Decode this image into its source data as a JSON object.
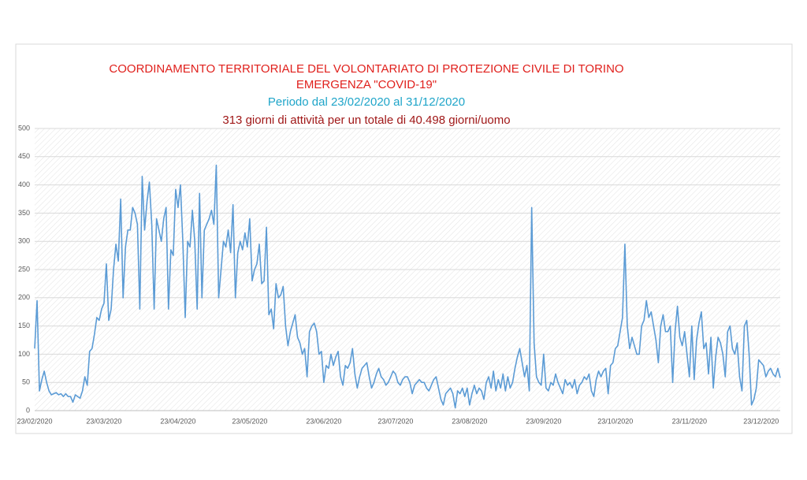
{
  "chart_data": {
    "type": "line",
    "title": "COORDINAMENTO TERRITORIALE DEL VOLONTARIATO DI PROTEZIONE CIVILE DI TORINO",
    "subtitle": "EMERGENZA  \"COVID-19\"",
    "annotations": [
      "Periodo dal 23/02/2020 al 31/12/2020",
      "313 giorni di attività per un totale di 40.498 giorni/uomo"
    ],
    "color": "#5b9bd5",
    "ylim": [
      0,
      500
    ],
    "yticks": [
      0,
      50,
      100,
      150,
      200,
      250,
      300,
      350,
      400,
      450,
      500
    ],
    "grid": true,
    "categories": [
      "23/02/2020",
      null,
      null,
      null,
      null,
      null,
      null,
      null,
      null,
      null,
      null,
      null,
      null,
      null,
      null,
      null,
      null,
      null,
      null,
      null,
      null,
      null,
      null,
      null,
      null,
      null,
      null,
      null,
      null,
      "23/03/2020",
      null,
      null,
      null,
      null,
      null,
      null,
      null,
      null,
      null,
      null,
      null,
      null,
      null,
      null,
      null,
      null,
      null,
      null,
      null,
      null,
      null,
      null,
      null,
      null,
      null,
      null,
      null,
      null,
      null,
      null,
      "23/04/2020",
      null,
      null,
      null,
      null,
      null,
      null,
      null,
      null,
      null,
      null,
      null,
      null,
      null,
      null,
      null,
      null,
      null,
      null,
      null,
      null,
      null,
      null,
      null,
      null,
      null,
      null,
      null,
      null,
      null,
      "23/05/2020",
      null,
      null,
      null,
      null,
      null,
      null,
      null,
      null,
      null,
      null,
      null,
      null,
      null,
      null,
      null,
      null,
      null,
      null,
      null,
      null,
      null,
      null,
      null,
      null,
      null,
      null,
      null,
      null,
      null,
      null,
      "23/06/2020",
      null,
      null,
      null,
      null,
      null,
      null,
      null,
      null,
      null,
      null,
      null,
      null,
      null,
      null,
      null,
      null,
      null,
      null,
      null,
      null,
      null,
      null,
      null,
      null,
      null,
      null,
      null,
      null,
      null,
      "23/07/2020",
      null,
      null,
      null,
      null,
      null,
      null,
      null,
      null,
      null,
      null,
      null,
      null,
      null,
      null,
      null,
      null,
      null,
      null,
      null,
      null,
      null,
      null,
      null,
      null,
      null,
      null,
      null,
      null,
      null,
      null,
      "23/08/2020",
      null,
      null,
      null,
      null,
      null,
      null,
      null,
      null,
      null,
      null,
      null,
      null,
      null,
      null,
      null,
      null,
      null,
      null,
      null,
      null,
      null,
      null,
      null,
      null,
      null,
      null,
      null,
      null,
      null,
      null,
      "23/09/2020",
      null,
      null,
      null,
      null,
      null,
      null,
      null,
      null,
      null,
      null,
      null,
      null,
      null,
      null,
      null,
      null,
      null,
      null,
      null,
      null,
      null,
      null,
      null,
      null,
      null,
      null,
      null,
      null,
      null,
      "23/10/2020",
      null,
      null,
      null,
      null,
      null,
      null,
      null,
      null,
      null,
      null,
      null,
      null,
      null,
      null,
      null,
      null,
      null,
      null,
      null,
      null,
      null,
      null,
      null,
      null,
      null,
      null,
      null,
      null,
      null,
      null,
      "23/11/2020",
      null,
      null,
      null,
      null,
      null,
      null,
      null,
      null,
      null,
      null,
      null,
      null,
      null,
      null,
      null,
      null,
      null,
      null,
      null,
      null,
      null,
      null,
      null,
      null,
      null,
      null,
      null,
      null,
      null,
      "23/12/2020",
      null,
      null,
      null,
      null,
      null,
      null,
      null,
      null
    ],
    "values": [
      110,
      195,
      35,
      55,
      70,
      50,
      35,
      28,
      30,
      32,
      28,
      30,
      25,
      30,
      25,
      25,
      15,
      28,
      25,
      22,
      35,
      60,
      45,
      105,
      110,
      135,
      165,
      160,
      180,
      190,
      260,
      160,
      180,
      250,
      295,
      265,
      375,
      200,
      290,
      320,
      320,
      360,
      350,
      330,
      180,
      415,
      320,
      370,
      405,
      330,
      180,
      340,
      320,
      300,
      340,
      360,
      180,
      285,
      275,
      392,
      360,
      400,
      300,
      165,
      300,
      290,
      355,
      300,
      180,
      385,
      200,
      320,
      330,
      340,
      355,
      330,
      435,
      200,
      250,
      300,
      290,
      320,
      280,
      365,
      200,
      280,
      300,
      285,
      315,
      290,
      340,
      230,
      250,
      260,
      295,
      225,
      230,
      325,
      170,
      180,
      145,
      225,
      200,
      205,
      220,
      150,
      115,
      140,
      155,
      170,
      130,
      120,
      100,
      110,
      60,
      140,
      150,
      155,
      140,
      100,
      105,
      50,
      80,
      75,
      100,
      80,
      95,
      105,
      60,
      45,
      80,
      75,
      85,
      110,
      65,
      40,
      60,
      75,
      80,
      85,
      60,
      40,
      50,
      65,
      75,
      60,
      55,
      45,
      50,
      60,
      70,
      65,
      50,
      45,
      55,
      60,
      60,
      50,
      30,
      45,
      50,
      55,
      50,
      50,
      40,
      35,
      45,
      55,
      60,
      40,
      20,
      10,
      30,
      35,
      40,
      30,
      5,
      35,
      30,
      40,
      25,
      40,
      10,
      30,
      45,
      30,
      40,
      35,
      20,
      50,
      60,
      40,
      70,
      35,
      55,
      40,
      65,
      35,
      60,
      40,
      50,
      75,
      95,
      110,
      85,
      60,
      80,
      35,
      360,
      120,
      60,
      50,
      45,
      100,
      40,
      35,
      50,
      45,
      65,
      50,
      40,
      30,
      55,
      45,
      50,
      40,
      55,
      30,
      45,
      50,
      60,
      55,
      65,
      35,
      25,
      55,
      70,
      60,
      70,
      75,
      30,
      80,
      85,
      110,
      115,
      140,
      165,
      295,
      150,
      110,
      130,
      115,
      100,
      100,
      150,
      160,
      195,
      165,
      175,
      150,
      125,
      85,
      150,
      170,
      140,
      140,
      150,
      50,
      140,
      185,
      130,
      115,
      140,
      100,
      60,
      150,
      55,
      125,
      155,
      175,
      110,
      120,
      65,
      130,
      40,
      95,
      130,
      120,
      100,
      60,
      140,
      150,
      110,
      100,
      120,
      60,
      35,
      150,
      160,
      100,
      10,
      20,
      40,
      90,
      85,
      80,
      60,
      70,
      75,
      65,
      60,
      75,
      58
    ]
  }
}
